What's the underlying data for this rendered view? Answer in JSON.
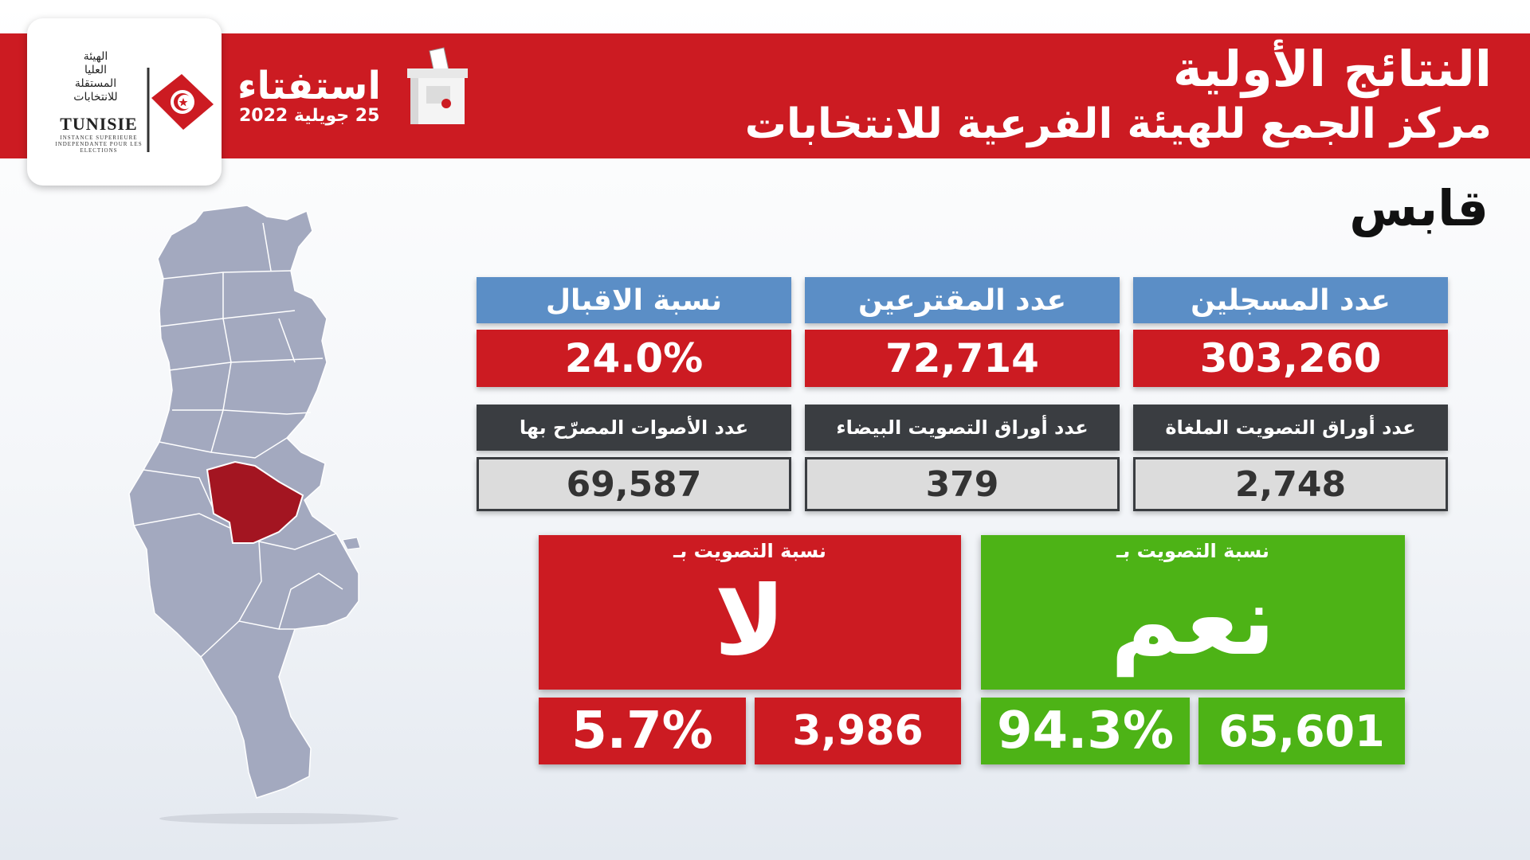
{
  "header": {
    "title": "النتائج الأولية",
    "subtitle": "مركز الجمع للهيئة الفرعية للانتخابات",
    "referendum": "استفتاء",
    "date": "25 جويلية 2022"
  },
  "logo": {
    "arabic_lines": [
      "الهيئة",
      "العليا",
      "المستقلة",
      "للانتخابات"
    ],
    "latin": "TUNISIE",
    "latin_small": "INSTANCE SUPERIEURE INDEPENDANTE POUR LES ELECTIONS"
  },
  "governorate": "قابس",
  "stats": {
    "registered_label": "عدد المسجلين",
    "registered_value": "303,260",
    "voters_label": "عدد المقترعين",
    "voters_value": "72,714",
    "turnout_label": "نسبة الاقبال",
    "turnout_value": "24.0%"
  },
  "ballots": {
    "cancelled_label": "عدد أوراق التصويت الملغاة",
    "cancelled_value": "2,748",
    "blank_label": "عدد أوراق التصويت البيضاء",
    "blank_value": "379",
    "valid_label": "عدد الأصوات المصرّح بها",
    "valid_value": "69,587"
  },
  "votes": {
    "yes": {
      "label": "نسبة التصويت بـ",
      "word": "نعم",
      "count": "65,601",
      "percent": "94.3%",
      "color": "#4db316"
    },
    "no": {
      "label": "نسبة التصويت بـ",
      "word": "لا",
      "count": "3,986",
      "percent": "5.7%",
      "color": "#cc1b22"
    }
  },
  "colors": {
    "banner": "#cc1b22",
    "header_blue": "#5b8ec6",
    "dark_gray": "#3a3d41",
    "map_gray": "#a3a9bf",
    "highlight": "#a31521"
  }
}
